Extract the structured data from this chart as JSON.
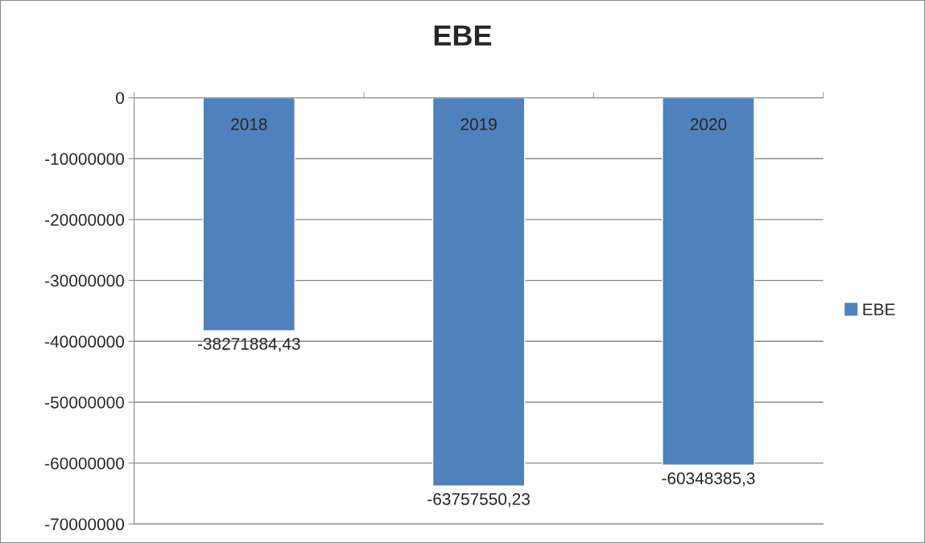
{
  "chart_data": {
    "type": "bar",
    "title": "EBE",
    "categories": [
      "2018",
      "2019",
      "2020"
    ],
    "series": [
      {
        "name": "EBE",
        "color": "#4f81bd",
        "values": [
          -38271884.43,
          -63757550.23,
          -60348385.3
        ],
        "value_labels": [
          "-38271884,43",
          "-63757550,23",
          "-60348385,3"
        ]
      }
    ],
    "ylim": [
      -70000000,
      0
    ],
    "yticks": [
      0,
      -10000000,
      -20000000,
      -30000000,
      -40000000,
      -50000000,
      -60000000,
      -70000000
    ],
    "grid": "y",
    "legend": "right"
  }
}
